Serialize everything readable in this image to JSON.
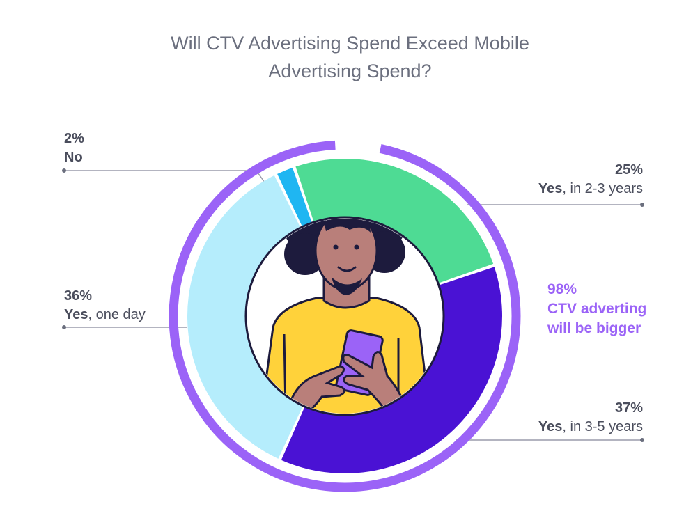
{
  "chart_data": {
    "type": "pie",
    "title_lines": [
      "Will CTV Advertising Spend Exceed Mobile",
      "Advertising Spend?"
    ],
    "slices": [
      {
        "value": 2,
        "pct_label": "2%",
        "yes": "",
        "text": "No",
        "color": "#1fb6f2"
      },
      {
        "value": 25,
        "pct_label": "25%",
        "yes": "Yes",
        "text": ", in 2-3 years",
        "color": "#4edb94"
      },
      {
        "value": 37,
        "pct_label": "37%",
        "yes": "Yes",
        "text": ", in 3-5 years",
        "color": "#4a12d4"
      },
      {
        "value": 36,
        "pct_label": "36%",
        "yes": "Yes",
        "text": ", one day",
        "color": "#b5edfc"
      }
    ],
    "callout": {
      "pct": "98%",
      "line1": "CTV adverting",
      "line2": "will be bigger",
      "value": 98
    },
    "ring_color": "#9b63f7"
  }
}
